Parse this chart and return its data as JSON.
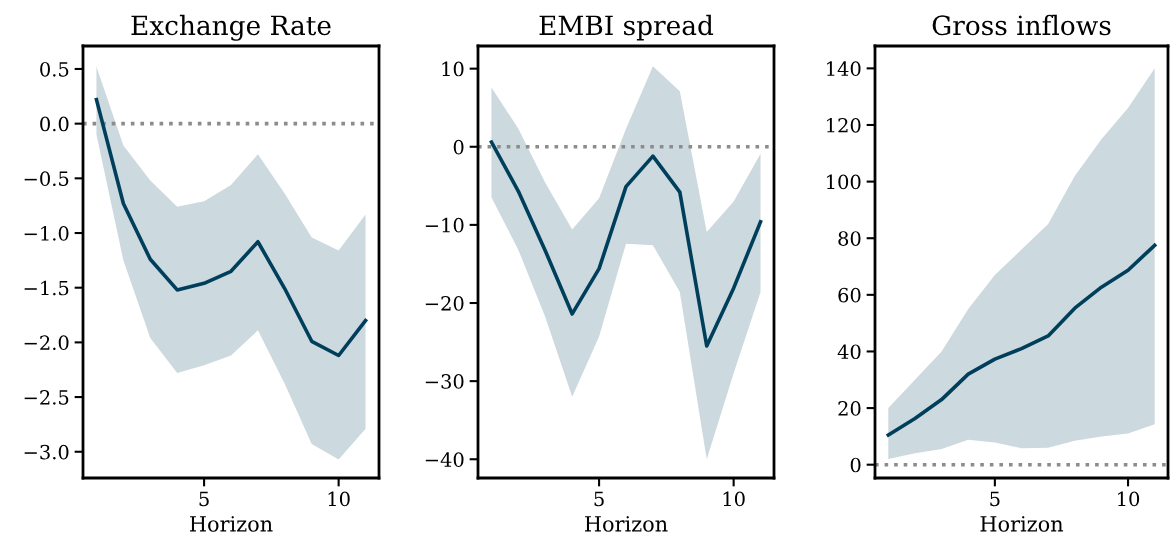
{
  "chart_data": [
    {
      "type": "line",
      "title": "Exchange Rate",
      "xlabel": "Horizon",
      "x": [
        1,
        2,
        3,
        4,
        5,
        6,
        7,
        8,
        9,
        10,
        11
      ],
      "xlim": [
        0.5,
        11.5
      ],
      "xticks": [
        5,
        10
      ],
      "ylim": [
        -3.24,
        0.71
      ],
      "yticks": [
        {
          "value": -3.0,
          "label": "−3.0"
        },
        {
          "value": -2.5,
          "label": "−2.5"
        },
        {
          "value": -2.0,
          "label": "−2.0"
        },
        {
          "value": -1.5,
          "label": "−1.5"
        },
        {
          "value": -1.0,
          "label": "−1.0"
        },
        {
          "value": -0.5,
          "label": "−0.5"
        },
        {
          "value": 0.0,
          "label": "0.0"
        },
        {
          "value": 0.5,
          "label": "0.5"
        }
      ],
      "grid": false,
      "series": [
        {
          "color": "#003f5c",
          "values": [
            0.22,
            -0.73,
            -1.24,
            -1.52,
            -1.46,
            -1.35,
            -1.08,
            -1.51,
            -1.99,
            -2.12,
            -1.8
          ],
          "upper": [
            0.52,
            -0.2,
            -0.52,
            -0.76,
            -0.71,
            -0.56,
            -0.28,
            -0.64,
            -1.04,
            -1.16,
            -0.83
          ],
          "lower": [
            -0.1,
            -1.25,
            -1.96,
            -2.28,
            -2.21,
            -2.12,
            -1.89,
            -2.38,
            -2.93,
            -3.07,
            -2.79
          ]
        }
      ],
      "ref_lines": [
        {
          "axis": "y",
          "value": 0,
          "color": "#8c8c8c",
          "line_style": "dotted"
        }
      ]
    },
    {
      "type": "line",
      "title": "EMBI spread",
      "xlabel": "Horizon",
      "x": [
        1,
        2,
        3,
        4,
        5,
        6,
        7,
        8,
        9,
        10,
        11
      ],
      "xlim": [
        0.5,
        11.5
      ],
      "xticks": [
        5,
        10
      ],
      "ylim": [
        -42.4,
        12.9
      ],
      "yticks": [
        {
          "value": -40,
          "label": "−40"
        },
        {
          "value": -30,
          "label": "−30"
        },
        {
          "value": -20,
          "label": "−20"
        },
        {
          "value": -10,
          "label": "−10"
        },
        0,
        10
      ],
      "grid": false,
      "series": [
        {
          "color": "#003f5c",
          "values": [
            0.6,
            -5.7,
            -13.3,
            -21.4,
            -15.6,
            -5.1,
            -1.2,
            -5.8,
            -25.5,
            -18.1,
            -9.6
          ],
          "upper": [
            7.6,
            2.3,
            -4.6,
            -10.6,
            -6.6,
            2.3,
            10.3,
            7.1,
            -10.9,
            -7.0,
            -0.9
          ],
          "lower": [
            -6.5,
            -13.2,
            -21.8,
            -32.0,
            -24.3,
            -12.4,
            -12.6,
            -18.6,
            -40.0,
            -29.0,
            -18.6
          ]
        }
      ],
      "ref_lines": [
        {
          "axis": "y",
          "value": 0,
          "color": "#8c8c8c",
          "line_style": "dotted"
        }
      ]
    },
    {
      "type": "line",
      "title": "Gross inflows",
      "xlabel": "Horizon",
      "x": [
        1,
        2,
        3,
        4,
        5,
        6,
        7,
        8,
        9,
        10,
        11
      ],
      "xlim": [
        0.5,
        11.5
      ],
      "xticks": [
        5,
        10
      ],
      "ylim": [
        -4.7,
        147.9
      ],
      "yticks": [
        0,
        20,
        40,
        60,
        80,
        100,
        120,
        140
      ],
      "grid": false,
      "series": [
        {
          "color": "#003f5c",
          "values": [
            10.5,
            16.3,
            23.0,
            32.0,
            37.3,
            41.0,
            45.5,
            55.3,
            62.7,
            68.7,
            77.5
          ],
          "upper": [
            20,
            30,
            40,
            55,
            67,
            76,
            85,
            102,
            115,
            126,
            140
          ],
          "lower": [
            2,
            4,
            5.5,
            8.8,
            7.8,
            5.8,
            6.0,
            8.5,
            10,
            11,
            14.3
          ]
        }
      ],
      "ref_lines": [
        {
          "axis": "y",
          "value": 0,
          "color": "#8c8c8c",
          "line_style": "dotted"
        }
      ]
    }
  ]
}
